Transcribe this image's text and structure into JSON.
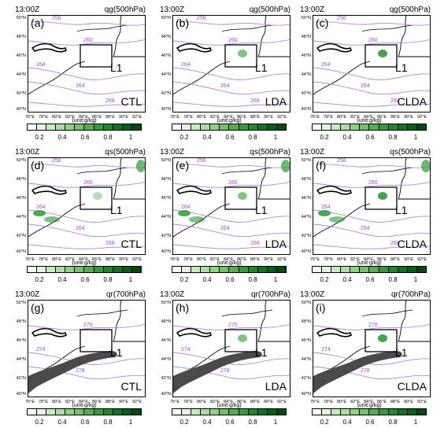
{
  "figure": {
    "time": "13:00Z",
    "colorbar": {
      "unit": "(unit:g/kg)",
      "ticks": [
        "0.2",
        "0.4",
        "0.6",
        "0.8",
        "1"
      ],
      "colors": [
        "#ffffff",
        "#e3f4df",
        "#c9eac2",
        "#aedca4",
        "#91cf87",
        "#72c06a",
        "#52ae4f",
        "#379a3d",
        "#218630",
        "#117224",
        "#075e1b",
        "#024a12"
      ]
    },
    "lat_labels": [
      "50°N",
      "48°N",
      "46°N",
      "44°N",
      "42°N",
      "40°N"
    ],
    "lon_labels": [
      "76°E",
      "78°E",
      "80°E",
      "82°E",
      "84°E",
      "86°E",
      "88°E",
      "90°E",
      "92°E"
    ],
    "colors": {
      "terrain": "#4a4a4a",
      "contour": "#b38ad6",
      "contour_label": "#9b4fd0",
      "field_green": "#2f9a38"
    }
  },
  "panels": [
    {
      "label": "(a)",
      "var": "qg(500hPa)",
      "exp": "CTL",
      "box": "L1",
      "contours": [
        "256",
        "260",
        "264",
        "264",
        "268"
      ]
    },
    {
      "label": "(b)",
      "var": "qg(500hPa)",
      "exp": "LDA",
      "box": "L1",
      "contours": [
        "256",
        "260",
        "264",
        "264",
        "268"
      ]
    },
    {
      "label": "(c)",
      "var": "qg(500hPa)",
      "exp": "CLDA",
      "box": "L1",
      "contours": [
        "256",
        "260",
        "264",
        "264",
        "268"
      ]
    },
    {
      "label": "(d)",
      "var": "qs(500hPa)",
      "exp": "CTL",
      "box": "L1",
      "contours": [
        "256",
        "260",
        "264",
        "264",
        "268"
      ]
    },
    {
      "label": "(e)",
      "var": "qs(500hPa)",
      "exp": "LDA",
      "box": "L1",
      "contours": [
        "256",
        "260",
        "264",
        "264",
        "268"
      ]
    },
    {
      "label": "(f)",
      "var": "qs(500hPa)",
      "exp": "CLDA",
      "box": "L1",
      "contours": [
        "256",
        "260",
        "264",
        "264",
        "268"
      ]
    },
    {
      "label": "(g)",
      "var": "qr(700hPa)",
      "exp": "CTL",
      "box": "L1",
      "contours": [
        "270",
        "274",
        "278"
      ]
    },
    {
      "label": "(h)",
      "var": "qr(700hPa)",
      "exp": "LDA",
      "box": "L1",
      "contours": [
        "270",
        "274",
        "278"
      ]
    },
    {
      "label": "(i)",
      "var": "qr(700hPa)",
      "exp": "CLDA",
      "box": "L1",
      "contours": [
        "270",
        "274",
        "278"
      ]
    }
  ]
}
